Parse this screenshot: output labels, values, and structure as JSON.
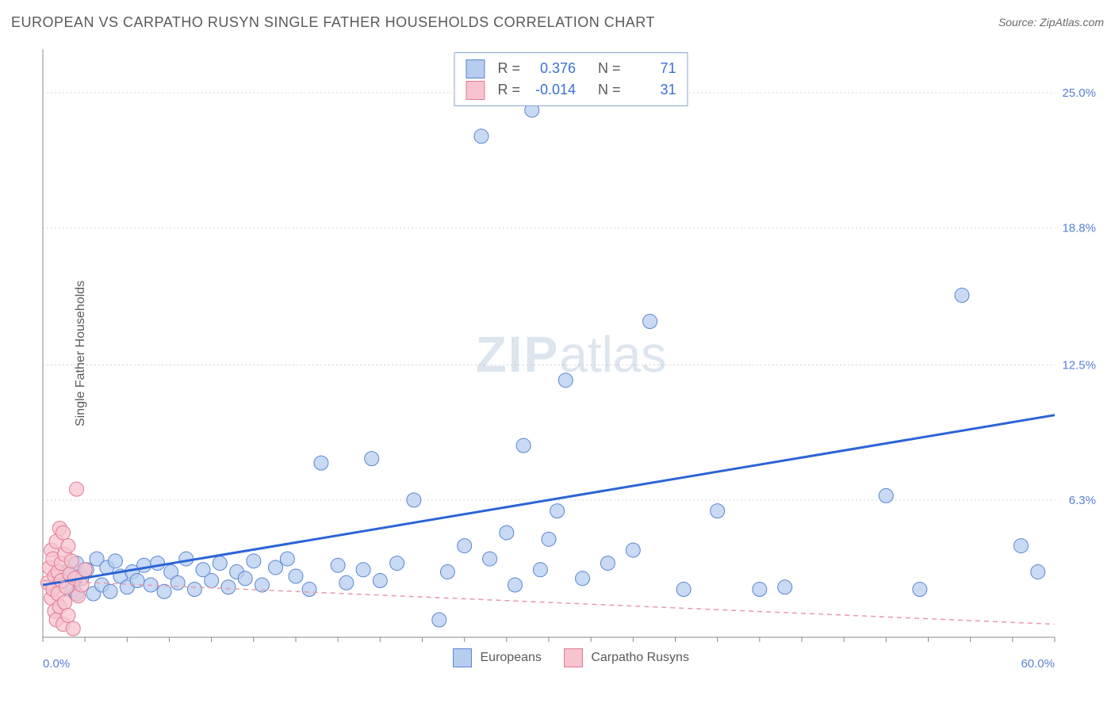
{
  "header": {
    "title": "EUROPEAN VS CARPATHO RUSYN SINGLE FATHER HOUSEHOLDS CORRELATION CHART",
    "source": "Source: ZipAtlas.com"
  },
  "watermark": {
    "part1": "ZIP",
    "part2": "atlas"
  },
  "chart": {
    "type": "scatter",
    "ylabel": "Single Father Households",
    "background_color": "#ffffff",
    "grid_color": "#d8d8d8",
    "axis_color": "#8a8a8a",
    "label_fontsize": 16,
    "tick_fontsize": 15,
    "tick_color": "#5a7fd6",
    "xlim": [
      0,
      60
    ],
    "ylim": [
      0,
      27
    ],
    "x_ticks_label": {
      "min": "0.0%",
      "max": "60.0%"
    },
    "y_ticks": [
      {
        "v": 6.3,
        "label": "6.3%"
      },
      {
        "v": 12.5,
        "label": "12.5%"
      },
      {
        "v": 18.8,
        "label": "18.8%"
      },
      {
        "v": 25.0,
        "label": "25.0%"
      }
    ],
    "x_minor_step": 2.5,
    "series": [
      {
        "id": "europeans",
        "name": "Europeans",
        "fill": "#b6cdf0",
        "stroke": "#5a86d0",
        "marker_radius": 9,
        "legend": {
          "R_label": "R =",
          "R": "0.376",
          "N_label": "N =",
          "N": "71"
        },
        "trendline": {
          "stroke": "#2b64d6",
          "width": 3,
          "dash": "",
          "x1": 0,
          "y1": 2.4,
          "x2": 60,
          "y2": 10.2
        },
        "points": [
          [
            1.0,
            2.5
          ],
          [
            1.4,
            3.0
          ],
          [
            1.8,
            2.2
          ],
          [
            2.0,
            3.4
          ],
          [
            2.3,
            2.7
          ],
          [
            2.6,
            3.1
          ],
          [
            3.0,
            2.0
          ],
          [
            3.2,
            3.6
          ],
          [
            3.5,
            2.4
          ],
          [
            3.8,
            3.2
          ],
          [
            4.0,
            2.1
          ],
          [
            4.3,
            3.5
          ],
          [
            4.6,
            2.8
          ],
          [
            5.0,
            2.3
          ],
          [
            5.3,
            3.0
          ],
          [
            5.6,
            2.6
          ],
          [
            6.0,
            3.3
          ],
          [
            6.4,
            2.4
          ],
          [
            6.8,
            3.4
          ],
          [
            7.2,
            2.1
          ],
          [
            7.6,
            3.0
          ],
          [
            8.0,
            2.5
          ],
          [
            8.5,
            3.6
          ],
          [
            9.0,
            2.2
          ],
          [
            9.5,
            3.1
          ],
          [
            10.0,
            2.6
          ],
          [
            10.5,
            3.4
          ],
          [
            11.0,
            2.3
          ],
          [
            11.5,
            3.0
          ],
          [
            12.0,
            2.7
          ],
          [
            12.5,
            3.5
          ],
          [
            13.0,
            2.4
          ],
          [
            13.8,
            3.2
          ],
          [
            14.5,
            3.6
          ],
          [
            15.0,
            2.8
          ],
          [
            15.8,
            2.2
          ],
          [
            16.5,
            8.0
          ],
          [
            17.5,
            3.3
          ],
          [
            18.0,
            2.5
          ],
          [
            19.0,
            3.1
          ],
          [
            19.5,
            8.2
          ],
          [
            20.0,
            2.6
          ],
          [
            21.0,
            3.4
          ],
          [
            22.0,
            6.3
          ],
          [
            23.5,
            0.8
          ],
          [
            24.0,
            3.0
          ],
          [
            25.0,
            4.2
          ],
          [
            26.0,
            23.0
          ],
          [
            26.5,
            3.6
          ],
          [
            27.5,
            4.8
          ],
          [
            28.0,
            2.4
          ],
          [
            28.5,
            8.8
          ],
          [
            29.0,
            24.2
          ],
          [
            29.5,
            3.1
          ],
          [
            30.0,
            4.5
          ],
          [
            30.5,
            5.8
          ],
          [
            31.0,
            11.8
          ],
          [
            32.0,
            2.7
          ],
          [
            33.5,
            3.4
          ],
          [
            35.0,
            4.0
          ],
          [
            36.0,
            14.5
          ],
          [
            38.0,
            2.2
          ],
          [
            40.0,
            5.8
          ],
          [
            42.5,
            2.2
          ],
          [
            44.0,
            2.3
          ],
          [
            50.0,
            6.5
          ],
          [
            52.0,
            2.2
          ],
          [
            54.5,
            15.7
          ],
          [
            58.0,
            4.2
          ],
          [
            59.0,
            3.0
          ],
          [
            2.0,
            2.0
          ]
        ]
      },
      {
        "id": "carpatho",
        "name": "Carpatho Rusyns",
        "fill": "#f7c3cf",
        "stroke": "#e07a94",
        "marker_radius": 9,
        "legend": {
          "R_label": "R =",
          "R": "-0.014",
          "N_label": "N =",
          "N": "31"
        },
        "trendline": {
          "stroke": "#e89aac",
          "width": 1.5,
          "dash": "6 5",
          "x1": 0,
          "y1": 2.6,
          "x2": 60,
          "y2": 0.6
        },
        "points": [
          [
            0.3,
            2.5
          ],
          [
            0.4,
            3.2
          ],
          [
            0.5,
            1.8
          ],
          [
            0.5,
            4.0
          ],
          [
            0.6,
            2.2
          ],
          [
            0.6,
            3.6
          ],
          [
            0.7,
            1.2
          ],
          [
            0.7,
            2.8
          ],
          [
            0.8,
            4.4
          ],
          [
            0.8,
            0.8
          ],
          [
            0.9,
            3.0
          ],
          [
            0.9,
            2.0
          ],
          [
            1.0,
            5.0
          ],
          [
            1.0,
            1.4
          ],
          [
            1.1,
            3.4
          ],
          [
            1.1,
            2.6
          ],
          [
            1.2,
            4.8
          ],
          [
            1.2,
            0.6
          ],
          [
            1.3,
            3.8
          ],
          [
            1.3,
            1.6
          ],
          [
            1.4,
            2.3
          ],
          [
            1.5,
            4.2
          ],
          [
            1.5,
            1.0
          ],
          [
            1.6,
            2.9
          ],
          [
            1.7,
            3.5
          ],
          [
            1.8,
            0.4
          ],
          [
            1.9,
            2.7
          ],
          [
            2.0,
            6.8
          ],
          [
            2.1,
            1.9
          ],
          [
            2.3,
            2.4
          ],
          [
            2.5,
            3.1
          ]
        ]
      }
    ],
    "bottom_legend": [
      {
        "swatch_fill": "#b6cdf0",
        "swatch_stroke": "#5a86d0",
        "label": "Europeans"
      },
      {
        "swatch_fill": "#f7c3cf",
        "swatch_stroke": "#e07a94",
        "label": "Carpatho Rusyns"
      }
    ]
  }
}
